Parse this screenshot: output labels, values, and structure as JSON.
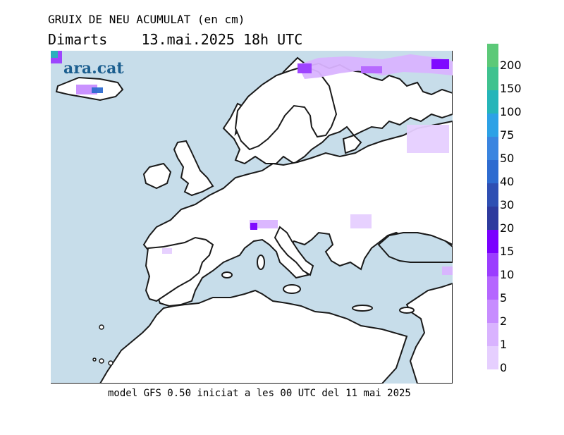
{
  "title": "GRUIX DE NEU ACUMULAT (en cm)",
  "subtitle": "Dimarts    13.mai.2025 18h UTC",
  "footer": "model GFS 0.50 iniciat a les 00 UTC del 11 mai 2025",
  "logo": "ara.cat",
  "colors": {
    "sea": "#c7ddea",
    "land": "#ffffff",
    "coast": "#1a1a1a"
  },
  "legend": [
    {
      "label": "0",
      "color": "#e6cfff"
    },
    {
      "label": "1",
      "color": "#d9b3ff"
    },
    {
      "label": "2",
      "color": "#c78cff"
    },
    {
      "label": "5",
      "color": "#b566ff"
    },
    {
      "label": "10",
      "color": "#9b3dff"
    },
    {
      "label": "15",
      "color": "#7a00ff"
    },
    {
      "label": "20",
      "color": "#2e3a9e"
    },
    {
      "label": "30",
      "color": "#2f4fb3"
    },
    {
      "label": "40",
      "color": "#2e6bd0"
    },
    {
      "label": "50",
      "color": "#3a85e0"
    },
    {
      "label": "75",
      "color": "#2ca1e6"
    },
    {
      "label": "100",
      "color": "#25b5b9"
    },
    {
      "label": "150",
      "color": "#3fc28f"
    },
    {
      "label": "200",
      "color": "#5cc978"
    },
    {
      "label": "",
      "color": "#7fd35c"
    }
  ]
}
